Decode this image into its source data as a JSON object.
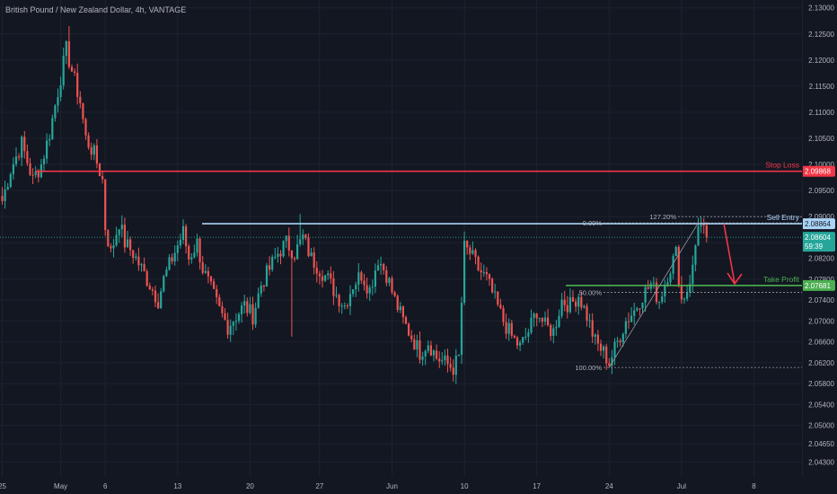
{
  "header": {
    "title": "British Pound / New Zealand Dollar, 4h, VANTAGE"
  },
  "colors": {
    "background": "#131722",
    "grid": "#1e2230",
    "text": "#b2b5be",
    "up": "#26a69a",
    "down": "#ef5350",
    "stop": "#f23645",
    "entry": "#a9d4f5",
    "take": "#4caf50",
    "fib": "#9598a1",
    "arrow": "#f23645"
  },
  "chart_data": {
    "type": "candlestick",
    "title": "British Pound / New Zealand Dollar, 4h, VANTAGE",
    "ylim": [
      2.0403,
      2.1315
    ],
    "y_ticks": [
      "2.13000",
      "2.12500",
      "2.12000",
      "2.11500",
      "2.11000",
      "2.10500",
      "2.10000",
      "2.09500",
      "2.09000",
      "2.08500",
      "2.08200",
      "2.07800",
      "2.07400",
      "2.07000",
      "2.06600",
      "2.06200",
      "2.05800",
      "2.05400",
      "2.05000",
      "2.04650",
      "2.04300"
    ],
    "x_ticks": [
      {
        "label": "25",
        "i": 0
      },
      {
        "label": "May",
        "i": 21
      },
      {
        "label": "6",
        "i": 37
      },
      {
        "label": "13",
        "i": 63
      },
      {
        "label": "20",
        "i": 89
      },
      {
        "label": "27",
        "i": 114
      },
      {
        "label": "Jun",
        "i": 140
      },
      {
        "label": "10",
        "i": 166
      },
      {
        "label": "17",
        "i": 192
      },
      {
        "label": "24",
        "i": 218
      },
      {
        "label": "Jul",
        "i": 244
      },
      {
        "label": "8",
        "i": 270
      }
    ],
    "candle_count": 254,
    "anchors": [
      [
        0,
        2.093
      ],
      [
        3,
        2.099
      ],
      [
        7,
        2.104
      ],
      [
        11,
        2.097
      ],
      [
        14,
        2.1
      ],
      [
        17,
        2.106
      ],
      [
        20,
        2.114
      ],
      [
        23,
        2.122
      ],
      [
        25,
        2.118
      ],
      [
        28,
        2.112
      ],
      [
        30,
        2.105
      ],
      [
        33,
        2.102
      ],
      [
        36,
        2.097
      ],
      [
        37,
        2.088
      ],
      [
        39,
        2.083
      ],
      [
        42,
        2.089
      ],
      [
        44,
        2.085
      ],
      [
        47,
        2.083
      ],
      [
        50,
        2.08
      ],
      [
        53,
        2.077
      ],
      [
        56,
        2.074
      ],
      [
        58,
        2.078
      ],
      [
        61,
        2.082
      ],
      [
        65,
        2.087
      ],
      [
        67,
        2.082
      ],
      [
        70,
        2.085
      ],
      [
        72,
        2.08
      ],
      [
        75,
        2.076
      ],
      [
        78,
        2.072
      ],
      [
        81,
        2.069
      ],
      [
        84,
        2.071
      ],
      [
        87,
        2.073
      ],
      [
        90,
        2.071
      ],
      [
        93,
        2.077
      ],
      [
        96,
        2.08
      ],
      [
        99,
        2.083
      ],
      [
        102,
        2.085
      ],
      [
        105,
        2.083
      ],
      [
        108,
        2.086
      ],
      [
        111,
        2.082
      ],
      [
        114,
        2.08
      ],
      [
        117,
        2.078
      ],
      [
        120,
        2.075
      ],
      [
        123,
        2.073
      ],
      [
        126,
        2.077
      ],
      [
        129,
        2.079
      ],
      [
        132,
        2.076
      ],
      [
        135,
        2.082
      ],
      [
        138,
        2.079
      ],
      [
        141,
        2.074
      ],
      [
        144,
        2.07
      ],
      [
        147,
        2.067
      ],
      [
        150,
        2.064
      ],
      [
        153,
        2.066
      ],
      [
        156,
        2.063
      ],
      [
        159,
        2.062
      ],
      [
        162,
        2.061
      ],
      [
        164,
        2.063
      ],
      [
        166,
        2.084
      ],
      [
        168,
        2.083
      ],
      [
        171,
        2.08
      ],
      [
        174,
        2.078
      ],
      [
        177,
        2.074
      ],
      [
        180,
        2.07
      ],
      [
        183,
        2.067
      ],
      [
        186,
        2.065
      ],
      [
        189,
        2.068
      ],
      [
        192,
        2.072
      ],
      [
        195,
        2.069
      ],
      [
        198,
        2.068
      ],
      [
        201,
        2.074
      ],
      [
        204,
        2.073
      ],
      [
        207,
        2.075
      ],
      [
        210,
        2.071
      ],
      [
        213,
        2.066
      ],
      [
        216,
        2.064
      ],
      [
        218,
        2.062
      ],
      [
        221,
        2.066
      ],
      [
        224,
        2.07
      ],
      [
        227,
        2.072
      ],
      [
        230,
        2.075
      ],
      [
        233,
        2.077
      ],
      [
        236,
        2.074
      ],
      [
        239,
        2.079
      ],
      [
        242,
        2.083
      ],
      [
        244,
        2.074
      ],
      [
        246,
        2.076
      ],
      [
        248,
        2.08
      ],
      [
        250,
        2.089
      ],
      [
        252,
        2.087
      ],
      [
        253,
        2.086
      ]
    ],
    "levels": {
      "stop_loss": {
        "label": "Stop Loss",
        "value": 2.09868,
        "price_label": "2.09868"
      },
      "sell_entry": {
        "label": "Sell Entry",
        "value": 2.08864,
        "price_label": "2.08864"
      },
      "take_profit": {
        "label": "Take Profit",
        "value": 2.07681,
        "price_label": "2.07681"
      },
      "current": {
        "value": 2.08604,
        "price_label": "2.08604",
        "countdown": "59:39"
      }
    },
    "fib": [
      {
        "label": "127.20%",
        "value": 2.09
      },
      {
        "label": "0.00%",
        "value": 2.0888
      },
      {
        "label": "50.00%",
        "value": 2.0755
      },
      {
        "label": "100.00%",
        "value": 2.0611
      }
    ]
  }
}
